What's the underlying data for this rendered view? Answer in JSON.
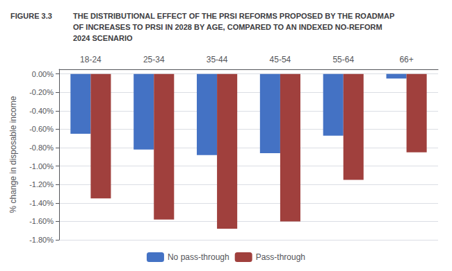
{
  "chart_data": {
    "type": "bar",
    "title": "THE DISTRIBUTIONAL EFFECT OF THE PRSI REFORMS PROPOSED BY THE ROADMAP\nOF INCREASES TO PRSI IN 2028 BY AGE, COMPARED TO AN INDEXED NO-REFORM\n2024 SCENARIO",
    "annotations": [
      "FIGURE 3.3"
    ],
    "categories": [
      "18-24",
      "25-34",
      "35-44",
      "45-54",
      "55-64",
      "66+"
    ],
    "series": [
      {
        "name": "No pass-through",
        "color": "#4472C4",
        "values": [
          -0.0065,
          -0.0082,
          -0.0088,
          -0.0086,
          -0.0067,
          -0.0005
        ]
      },
      {
        "name": "Pass-through",
        "color": "#A0403D",
        "values": [
          -0.0135,
          -0.0158,
          -0.0168,
          -0.016,
          -0.0115,
          -0.0085
        ]
      }
    ],
    "y_label": "% change in disposable income",
    "ylim": [
      -0.018,
      0.0005
    ],
    "yticks": [
      {
        "value": 0.0,
        "label": "0.00%"
      },
      {
        "value": -0.002,
        "label": "-0.20%"
      },
      {
        "value": -0.004,
        "label": "-0.40%"
      },
      {
        "value": -0.006,
        "label": "-0.60%"
      },
      {
        "value": -0.008,
        "label": "-0.80%"
      },
      {
        "value": -0.01,
        "label": "-1.00%"
      },
      {
        "value": -0.012,
        "label": "-1.20%"
      },
      {
        "value": -0.014,
        "label": "-1.40%"
      },
      {
        "value": -0.016,
        "label": "-1.60%"
      },
      {
        "value": -0.018,
        "label": "-1.80%"
      }
    ],
    "grid": true,
    "legend": "bottom"
  }
}
